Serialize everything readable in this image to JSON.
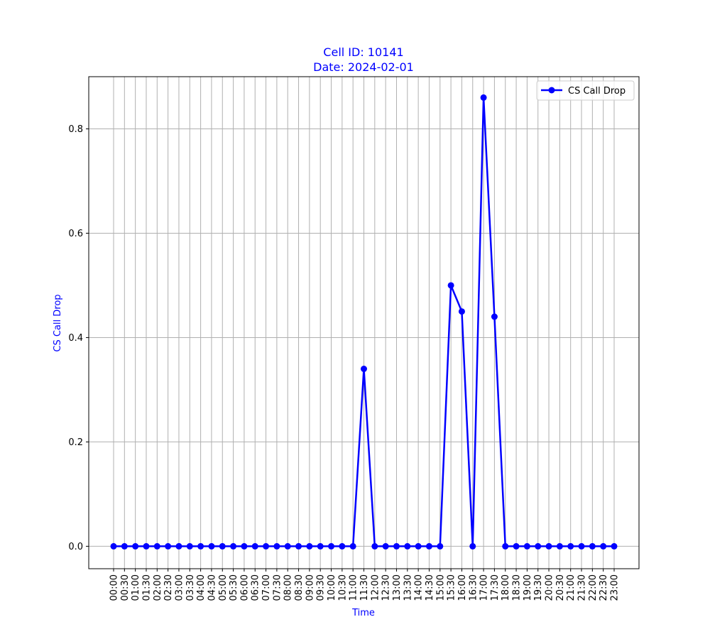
{
  "chart_data": {
    "type": "line",
    "title_line1": "Cell ID: 10141",
    "title_line2": "Date: 2024-02-01",
    "xlabel": "Time",
    "ylabel": "CS Call Drop",
    "ylim": [
      -0.043,
      0.9
    ],
    "yticks": [
      "0.0",
      "0.2",
      "0.4",
      "0.6",
      "0.8"
    ],
    "ytick_values": [
      0.0,
      0.2,
      0.4,
      0.6,
      0.8
    ],
    "grid": true,
    "legend_position": "top-right",
    "x": [
      "00:00",
      "00:30",
      "01:00",
      "01:30",
      "02:00",
      "02:30",
      "03:00",
      "03:30",
      "04:00",
      "04:30",
      "05:00",
      "05:30",
      "06:00",
      "06:30",
      "07:00",
      "07:30",
      "08:00",
      "08:30",
      "09:00",
      "09:30",
      "10:00",
      "10:30",
      "11:00",
      "11:30",
      "12:00",
      "12:30",
      "13:00",
      "13:30",
      "14:00",
      "14:30",
      "15:00",
      "15:30",
      "16:00",
      "16:30",
      "17:00",
      "17:30",
      "18:00",
      "18:30",
      "19:00",
      "19:30",
      "20:00",
      "20:30",
      "21:00",
      "21:30",
      "22:00",
      "22:30",
      "23:00"
    ],
    "series": [
      {
        "name": "CS Call Drop",
        "color": "#0000ff",
        "marker": "circle",
        "values": [
          0,
          0,
          0,
          0,
          0,
          0,
          0,
          0,
          0,
          0,
          0,
          0,
          0,
          0,
          0,
          0,
          0,
          0,
          0,
          0,
          0,
          0,
          0,
          0.34,
          0,
          0,
          0,
          0,
          0,
          0,
          0,
          0.5,
          0.45,
          0,
          0.86,
          0.44,
          0,
          0,
          0,
          0,
          0,
          0,
          0,
          0,
          0,
          0,
          0
        ]
      }
    ]
  },
  "colors": {
    "accent": "#0000ff",
    "grid": "#b0b0b0",
    "axes": "#000000"
  }
}
